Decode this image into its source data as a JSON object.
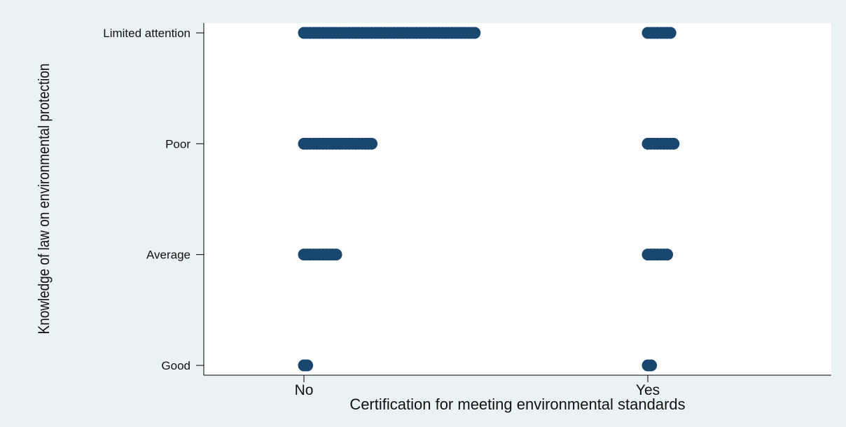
{
  "chart_data": {
    "type": "scatter",
    "title": "",
    "xlabel": "Certification for meeting environmental standards",
    "ylabel": "Knowledge of law on environmental protection",
    "x_categories": [
      "No",
      "Yes"
    ],
    "y_categories": [
      "Good",
      "Average",
      "Poor",
      "Limited attention"
    ],
    "grid": false,
    "legend": "none",
    "marker_color": "#1a476f",
    "background_outer": "#eaf2f3",
    "background_plot": "#ffffff",
    "series": [
      {
        "points": [
          {
            "x": "No",
            "y": "Limited attention",
            "count": 54
          },
          {
            "x": "No",
            "y": "Poor",
            "count": 22
          },
          {
            "x": "No",
            "y": "Average",
            "count": 11
          },
          {
            "x": "No",
            "y": "Good",
            "count": 2
          },
          {
            "x": "Yes",
            "y": "Limited attention",
            "count": 8
          },
          {
            "x": "Yes",
            "y": "Poor",
            "count": 9
          },
          {
            "x": "Yes",
            "y": "Average",
            "count": 7
          },
          {
            "x": "Yes",
            "y": "Good",
            "count": 2
          }
        ]
      }
    ]
  }
}
